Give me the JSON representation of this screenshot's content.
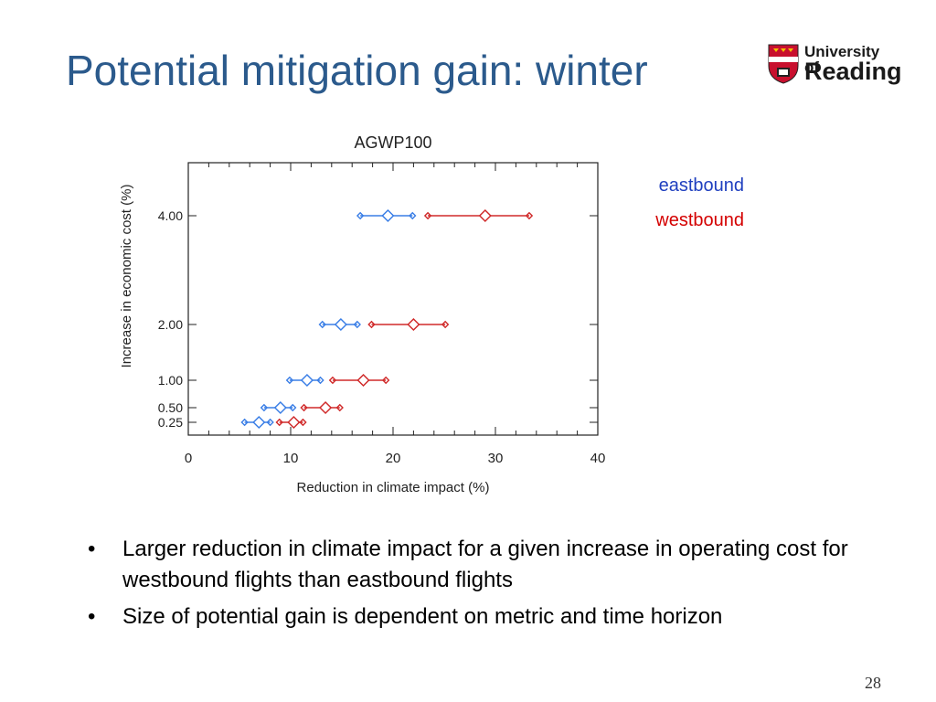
{
  "slide": {
    "title": "Potential mitigation gain: winter",
    "page_number": "28"
  },
  "logo": {
    "line1": "University of",
    "line2": "Reading"
  },
  "legend": {
    "eastbound": "eastbound",
    "westbound": "westbound"
  },
  "colors": {
    "title": "#2b5a8c",
    "eastbound": "#3a7ee6",
    "westbound": "#d02a2a",
    "legend_eastbound": "#1f3fbf",
    "legend_westbound": "#d40000"
  },
  "bullets": [
    {
      "marker": "•",
      "text": "Larger reduction in climate impact for a given increase in operating cost for westbound flights than eastbound flights"
    },
    {
      "marker": "•",
      "text": "Size of potential gain is dependent on metric and time horizon"
    }
  ],
  "chart_data": {
    "type": "scatter",
    "title": "AGWP100",
    "xlabel": "Reduction in climate impact (%)",
    "ylabel": "Increase in economic cost (%)",
    "xlim": [
      0,
      40
    ],
    "x_ticks": [
      "0",
      "10",
      "20",
      "30",
      "40"
    ],
    "y_ticks": [
      "0.25",
      "0.50",
      "1.00",
      "2.00",
      "4.00"
    ],
    "series": [
      {
        "name": "eastbound",
        "points": [
          {
            "y": "0.25",
            "min": 5.5,
            "mid": 6.9,
            "max": 8.0
          },
          {
            "y": "0.50",
            "min": 7.4,
            "mid": 9.0,
            "max": 10.2
          },
          {
            "y": "1.00",
            "min": 9.9,
            "mid": 11.6,
            "max": 12.9
          },
          {
            "y": "2.00",
            "min": 13.1,
            "mid": 14.9,
            "max": 16.5
          },
          {
            "y": "4.00",
            "min": 16.8,
            "mid": 19.5,
            "max": 21.9
          }
        ]
      },
      {
        "name": "westbound",
        "points": [
          {
            "y": "0.25",
            "min": 8.9,
            "mid": 10.3,
            "max": 11.2
          },
          {
            "y": "0.50",
            "min": 11.3,
            "mid": 13.4,
            "max": 14.8
          },
          {
            "y": "1.00",
            "min": 14.1,
            "mid": 17.1,
            "max": 19.3
          },
          {
            "y": "2.00",
            "min": 17.9,
            "mid": 22.0,
            "max": 25.1
          },
          {
            "y": "4.00",
            "min": 23.4,
            "mid": 29.0,
            "max": 33.3
          }
        ]
      }
    ],
    "grid": false
  }
}
